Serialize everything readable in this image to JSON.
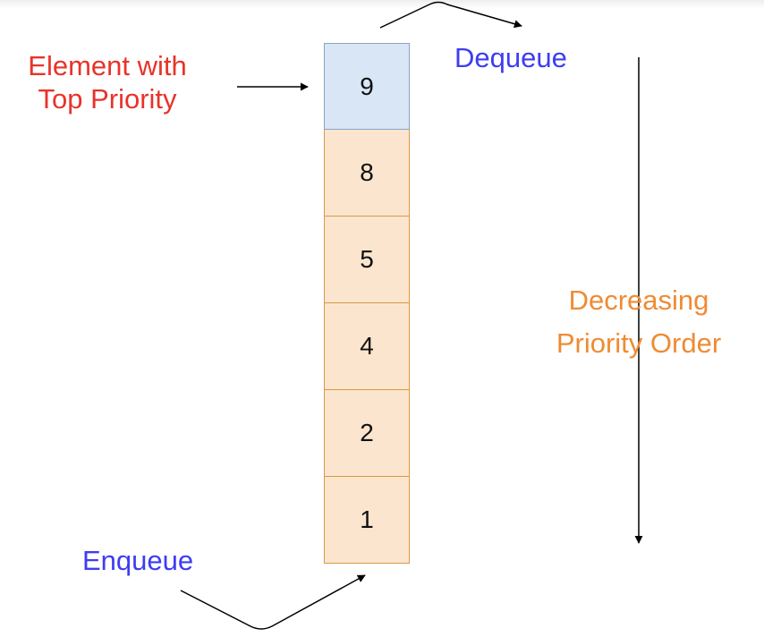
{
  "labels": {
    "top_priority": [
      "Element with",
      "Top Priority"
    ],
    "dequeue": "Dequeue",
    "enqueue": "Enqueue",
    "decreasing_order": [
      "Decreasing",
      "Priority Order"
    ]
  },
  "queue": {
    "elements": [
      "9",
      "8",
      "5",
      "4",
      "2",
      "1"
    ],
    "highlighted_index": 0
  },
  "colors": {
    "top_element_fill": "#d9e6f6",
    "element_fill": "#fbe5ce",
    "element_border": "#d79b45",
    "enqueue_dequeue_text": "#3d3df2",
    "top_priority_text": "#e8332a",
    "order_text": "#ef8b33"
  }
}
